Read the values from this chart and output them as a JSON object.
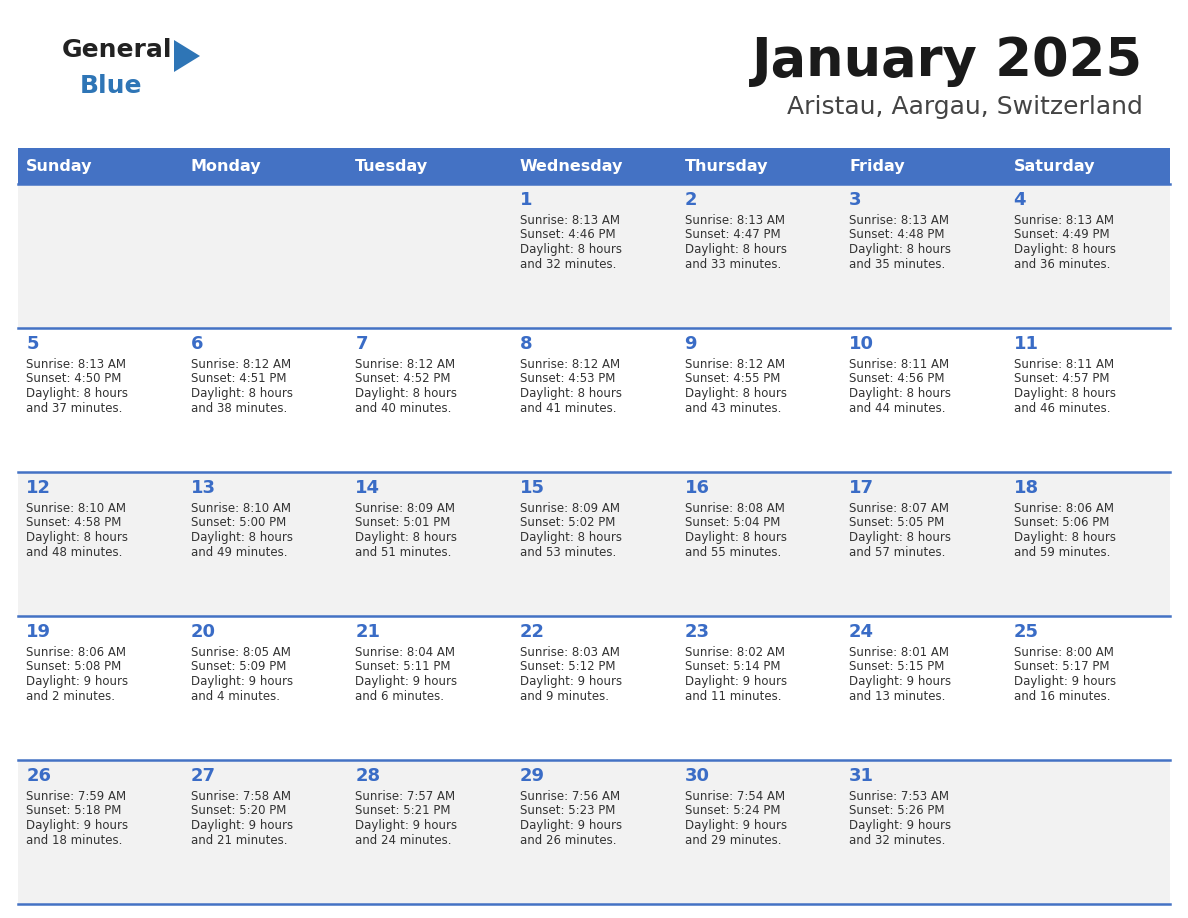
{
  "title": "January 2025",
  "subtitle": "Aristau, Aargau, Switzerland",
  "days_of_week": [
    "Sunday",
    "Monday",
    "Tuesday",
    "Wednesday",
    "Thursday",
    "Friday",
    "Saturday"
  ],
  "header_bg": "#4472C4",
  "header_text": "#FFFFFF",
  "row_bg_odd": "#F2F2F2",
  "row_bg_even": "#FFFFFF",
  "day_number_color": "#3A6CC6",
  "text_color": "#333333",
  "line_color": "#4472C4",
  "logo_general_color": "#222222",
  "logo_blue_color": "#2E75B6",
  "calendar_data": [
    [
      null,
      null,
      null,
      {
        "day": 1,
        "sunrise": "8:13 AM",
        "sunset": "4:46 PM",
        "daylight": "8 hours",
        "daylight2": "and 32 minutes."
      },
      {
        "day": 2,
        "sunrise": "8:13 AM",
        "sunset": "4:47 PM",
        "daylight": "8 hours",
        "daylight2": "and 33 minutes."
      },
      {
        "day": 3,
        "sunrise": "8:13 AM",
        "sunset": "4:48 PM",
        "daylight": "8 hours",
        "daylight2": "and 35 minutes."
      },
      {
        "day": 4,
        "sunrise": "8:13 AM",
        "sunset": "4:49 PM",
        "daylight": "8 hours",
        "daylight2": "and 36 minutes."
      }
    ],
    [
      {
        "day": 5,
        "sunrise": "8:13 AM",
        "sunset": "4:50 PM",
        "daylight": "8 hours",
        "daylight2": "and 37 minutes."
      },
      {
        "day": 6,
        "sunrise": "8:12 AM",
        "sunset": "4:51 PM",
        "daylight": "8 hours",
        "daylight2": "and 38 minutes."
      },
      {
        "day": 7,
        "sunrise": "8:12 AM",
        "sunset": "4:52 PM",
        "daylight": "8 hours",
        "daylight2": "and 40 minutes."
      },
      {
        "day": 8,
        "sunrise": "8:12 AM",
        "sunset": "4:53 PM",
        "daylight": "8 hours",
        "daylight2": "and 41 minutes."
      },
      {
        "day": 9,
        "sunrise": "8:12 AM",
        "sunset": "4:55 PM",
        "daylight": "8 hours",
        "daylight2": "and 43 minutes."
      },
      {
        "day": 10,
        "sunrise": "8:11 AM",
        "sunset": "4:56 PM",
        "daylight": "8 hours",
        "daylight2": "and 44 minutes."
      },
      {
        "day": 11,
        "sunrise": "8:11 AM",
        "sunset": "4:57 PM",
        "daylight": "8 hours",
        "daylight2": "and 46 minutes."
      }
    ],
    [
      {
        "day": 12,
        "sunrise": "8:10 AM",
        "sunset": "4:58 PM",
        "daylight": "8 hours",
        "daylight2": "and 48 minutes."
      },
      {
        "day": 13,
        "sunrise": "8:10 AM",
        "sunset": "5:00 PM",
        "daylight": "8 hours",
        "daylight2": "and 49 minutes."
      },
      {
        "day": 14,
        "sunrise": "8:09 AM",
        "sunset": "5:01 PM",
        "daylight": "8 hours",
        "daylight2": "and 51 minutes."
      },
      {
        "day": 15,
        "sunrise": "8:09 AM",
        "sunset": "5:02 PM",
        "daylight": "8 hours",
        "daylight2": "and 53 minutes."
      },
      {
        "day": 16,
        "sunrise": "8:08 AM",
        "sunset": "5:04 PM",
        "daylight": "8 hours",
        "daylight2": "and 55 minutes."
      },
      {
        "day": 17,
        "sunrise": "8:07 AM",
        "sunset": "5:05 PM",
        "daylight": "8 hours",
        "daylight2": "and 57 minutes."
      },
      {
        "day": 18,
        "sunrise": "8:06 AM",
        "sunset": "5:06 PM",
        "daylight": "8 hours",
        "daylight2": "and 59 minutes."
      }
    ],
    [
      {
        "day": 19,
        "sunrise": "8:06 AM",
        "sunset": "5:08 PM",
        "daylight": "9 hours",
        "daylight2": "and 2 minutes."
      },
      {
        "day": 20,
        "sunrise": "8:05 AM",
        "sunset": "5:09 PM",
        "daylight": "9 hours",
        "daylight2": "and 4 minutes."
      },
      {
        "day": 21,
        "sunrise": "8:04 AM",
        "sunset": "5:11 PM",
        "daylight": "9 hours",
        "daylight2": "and 6 minutes."
      },
      {
        "day": 22,
        "sunrise": "8:03 AM",
        "sunset": "5:12 PM",
        "daylight": "9 hours",
        "daylight2": "and 9 minutes."
      },
      {
        "day": 23,
        "sunrise": "8:02 AM",
        "sunset": "5:14 PM",
        "daylight": "9 hours",
        "daylight2": "and 11 minutes."
      },
      {
        "day": 24,
        "sunrise": "8:01 AM",
        "sunset": "5:15 PM",
        "daylight": "9 hours",
        "daylight2": "and 13 minutes."
      },
      {
        "day": 25,
        "sunrise": "8:00 AM",
        "sunset": "5:17 PM",
        "daylight": "9 hours",
        "daylight2": "and 16 minutes."
      }
    ],
    [
      {
        "day": 26,
        "sunrise": "7:59 AM",
        "sunset": "5:18 PM",
        "daylight": "9 hours",
        "daylight2": "and 18 minutes."
      },
      {
        "day": 27,
        "sunrise": "7:58 AM",
        "sunset": "5:20 PM",
        "daylight": "9 hours",
        "daylight2": "and 21 minutes."
      },
      {
        "day": 28,
        "sunrise": "7:57 AM",
        "sunset": "5:21 PM",
        "daylight": "9 hours",
        "daylight2": "and 24 minutes."
      },
      {
        "day": 29,
        "sunrise": "7:56 AM",
        "sunset": "5:23 PM",
        "daylight": "9 hours",
        "daylight2": "and 26 minutes."
      },
      {
        "day": 30,
        "sunrise": "7:54 AM",
        "sunset": "5:24 PM",
        "daylight": "9 hours",
        "daylight2": "and 29 minutes."
      },
      {
        "day": 31,
        "sunrise": "7:53 AM",
        "sunset": "5:26 PM",
        "daylight": "9 hours",
        "daylight2": "and 32 minutes."
      },
      null
    ]
  ]
}
